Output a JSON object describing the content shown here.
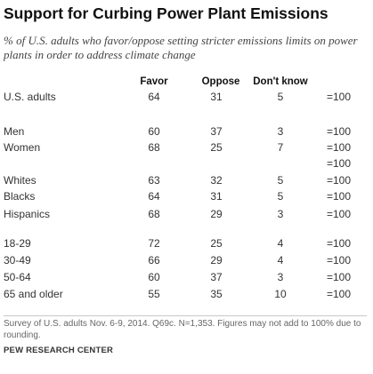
{
  "title": "Support for Curbing Power Plant Emissions",
  "subtitle": "% of U.S. adults who favor/oppose setting stricter emissions limits on power plants in order to address climate change",
  "note": "Survey of U.S. adults Nov. 6-9, 2014. Q69c. N=1,353.  Figures may not add to 100% due to rounding.",
  "source": "PEW RESEARCH CENTER",
  "chart_data": {
    "type": "table",
    "columns": [
      "Favor",
      "Oppose",
      "Don't know"
    ],
    "rows": [
      {
        "label": "U.S. adults",
        "values": [
          64,
          31,
          5
        ],
        "total": "=100"
      },
      {
        "label": "Men",
        "values": [
          60,
          37,
          3
        ],
        "total": "=100"
      },
      {
        "label": "Women",
        "values": [
          68,
          25,
          7
        ],
        "total": "=100"
      },
      {
        "label": "",
        "values": [],
        "total": "=100"
      },
      {
        "label": "Whites",
        "values": [
          63,
          32,
          5
        ],
        "total": "=100"
      },
      {
        "label": "Blacks",
        "values": [
          64,
          31,
          5
        ],
        "total": "=100"
      },
      {
        "label": "Hispanics",
        "values": [
          68,
          29,
          3
        ],
        "total": "=100"
      },
      {
        "label": "18-29",
        "values": [
          72,
          25,
          4
        ],
        "total": "=100"
      },
      {
        "label": "30-49",
        "values": [
          66,
          29,
          4
        ],
        "total": "=100"
      },
      {
        "label": "50-64",
        "values": [
          60,
          37,
          3
        ],
        "total": "=100"
      },
      {
        "label": "65 and older",
        "values": [
          55,
          35,
          10
        ],
        "total": "=100"
      }
    ]
  }
}
